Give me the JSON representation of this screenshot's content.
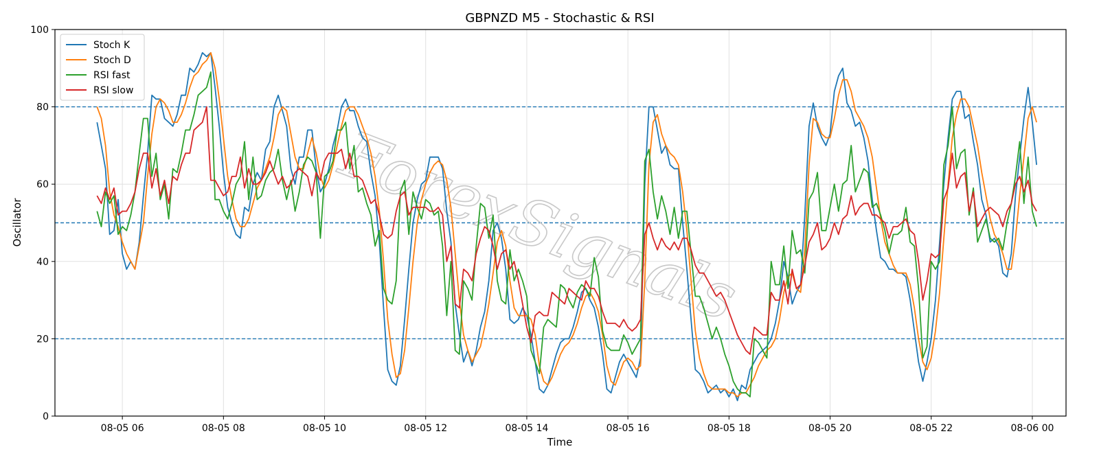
{
  "chart_data": {
    "type": "line",
    "title": "GBPNZD M5 - Stochastic & RSI",
    "xlabel": "Time",
    "ylabel": "Oscillator",
    "ylim": [
      0,
      100
    ],
    "xlim": [
      "08-05 04:40",
      "08-06 00:40"
    ],
    "yticks": [
      0,
      20,
      40,
      60,
      80,
      100
    ],
    "xticks": [
      "08-05 06",
      "08-05 08",
      "08-05 10",
      "08-05 12",
      "08-05 14",
      "08-05 16",
      "08-05 18",
      "08-05 20",
      "08-05 22",
      "08-06 00"
    ],
    "reference_lines": [
      20,
      50,
      80
    ],
    "grid": true,
    "legend_position": "top-left",
    "watermark": "ForexSignals",
    "colors": {
      "stoch_k": "#1f77b4",
      "stoch_d": "#ff7f0e",
      "rsi_fast": "#2ca02c",
      "rsi_slow": "#d62728",
      "reference": "#1f77b4"
    },
    "x_start": "08-05 05:30",
    "x_step_minutes": 5,
    "series": [
      {
        "name": "Stoch K",
        "color": "#1f77b4",
        "values": [
          76,
          70,
          64,
          47,
          48,
          56,
          42,
          38,
          40,
          38,
          45,
          57,
          68,
          83,
          82,
          82,
          77,
          76,
          75,
          78,
          83,
          83,
          90,
          89,
          91,
          94,
          93,
          94,
          85,
          75,
          63,
          54,
          50,
          47,
          46,
          54,
          53,
          60,
          63,
          61,
          69,
          71,
          80,
          83,
          79,
          75,
          64,
          60,
          67,
          67,
          74,
          74,
          64,
          58,
          60,
          64,
          70,
          74,
          80,
          82,
          79,
          79,
          75,
          72,
          71,
          63,
          57,
          45,
          28,
          12,
          9,
          8,
          13,
          25,
          38,
          50,
          56,
          60,
          61,
          67,
          67,
          67,
          64,
          53,
          45,
          29,
          21,
          14,
          17,
          13,
          17,
          23,
          27,
          35,
          48,
          50,
          46,
          38,
          25,
          24,
          25,
          28,
          26,
          21,
          14,
          7,
          6,
          8,
          12,
          16,
          19,
          20,
          20,
          23,
          27,
          32,
          33,
          30,
          28,
          23,
          16,
          7,
          6,
          10,
          14,
          16,
          14,
          12,
          10,
          15,
          60,
          80,
          80,
          74,
          68,
          70,
          65,
          64,
          64,
          50,
          38,
          25,
          12,
          11,
          9,
          6,
          7,
          8,
          6,
          7,
          5,
          7,
          4,
          8,
          7,
          12,
          14,
          16,
          17,
          18,
          20,
          24,
          30,
          40,
          36,
          29,
          32,
          34,
          52,
          75,
          81,
          75,
          72,
          70,
          73,
          84,
          88,
          90,
          81,
          79,
          75,
          76,
          72,
          66,
          56,
          48,
          41,
          40,
          38,
          38,
          37,
          37,
          36,
          30,
          22,
          14,
          9,
          14,
          20,
          30,
          45,
          60,
          72,
          82,
          84,
          84,
          77,
          78,
          71,
          65,
          56,
          52,
          45,
          46,
          44,
          37,
          36,
          42,
          57,
          67,
          77,
          85,
          76,
          65
        ]
      },
      {
        "name": "Stoch D",
        "color": "#ff7f0e",
        "values": [
          80,
          77,
          70,
          58,
          52,
          49,
          45,
          42,
          40,
          38,
          44,
          50,
          62,
          73,
          80,
          82,
          81,
          79,
          76,
          76,
          78,
          81,
          85,
          88,
          89,
          91,
          92,
          94,
          90,
          82,
          72,
          62,
          56,
          51,
          49,
          49,
          51,
          55,
          59,
          61,
          64,
          67,
          72,
          78,
          80,
          79,
          73,
          67,
          64,
          64,
          68,
          72,
          68,
          62,
          59,
          61,
          65,
          70,
          75,
          79,
          80,
          80,
          78,
          75,
          72,
          68,
          62,
          53,
          40,
          25,
          16,
          10,
          11,
          17,
          28,
          40,
          50,
          56,
          60,
          63,
          65,
          66,
          65,
          61,
          54,
          42,
          30,
          21,
          17,
          14,
          16,
          18,
          23,
          29,
          37,
          45,
          48,
          44,
          35,
          28,
          26,
          26,
          26,
          25,
          21,
          13,
          9,
          8,
          10,
          13,
          16,
          18,
          19,
          21,
          24,
          28,
          31,
          32,
          30,
          27,
          21,
          13,
          9,
          8,
          11,
          14,
          15,
          14,
          12,
          13,
          35,
          65,
          76,
          78,
          73,
          70,
          68,
          67,
          65,
          58,
          48,
          35,
          22,
          15,
          11,
          8,
          7,
          7,
          7,
          7,
          6,
          6,
          5,
          6,
          6,
          8,
          10,
          13,
          15,
          17,
          18,
          20,
          25,
          32,
          36,
          37,
          33,
          32,
          43,
          65,
          77,
          76,
          73,
          72,
          72,
          77,
          83,
          87,
          87,
          84,
          79,
          77,
          75,
          72,
          67,
          59,
          51,
          45,
          42,
          39,
          37,
          37,
          37,
          34,
          28,
          20,
          14,
          12,
          15,
          22,
          32,
          46,
          60,
          72,
          78,
          82,
          82,
          80,
          75,
          70,
          63,
          57,
          51,
          47,
          45,
          42,
          38,
          38,
          46,
          57,
          67,
          77,
          80,
          76
        ]
      },
      {
        "name": "RSI fast",
        "color": "#2ca02c",
        "values": [
          53,
          49,
          58,
          55,
          57,
          47,
          49,
          48,
          52,
          58,
          68,
          77,
          77,
          62,
          68,
          56,
          60,
          51,
          64,
          63,
          68,
          74,
          74,
          78,
          83,
          84,
          85,
          89,
          56,
          56,
          53,
          51,
          55,
          60,
          62,
          71,
          56,
          67,
          56,
          57,
          61,
          63,
          64,
          69,
          61,
          56,
          61,
          53,
          58,
          65,
          67,
          66,
          63,
          46,
          62,
          63,
          66,
          74,
          74,
          76,
          64,
          70,
          58,
          59,
          55,
          52,
          44,
          48,
          33,
          30,
          29,
          35,
          58,
          61,
          47,
          58,
          54,
          51,
          56,
          55,
          52,
          53,
          44,
          26,
          40,
          17,
          16,
          35,
          33,
          30,
          44,
          55,
          54,
          46,
          52,
          35,
          30,
          29,
          43,
          35,
          38,
          35,
          31,
          17,
          14,
          11,
          23,
          25,
          24,
          23,
          34,
          33,
          30,
          28,
          32,
          34,
          33,
          31,
          41,
          36,
          22,
          18,
          17,
          17,
          17,
          21,
          19,
          16,
          18,
          20,
          66,
          69,
          58,
          51,
          57,
          53,
          47,
          54,
          46,
          53,
          53,
          42,
          31,
          31,
          28,
          24,
          20,
          23,
          20,
          16,
          13,
          9,
          7,
          6,
          6,
          5,
          20,
          19,
          17,
          15,
          40,
          34,
          34,
          44,
          33,
          48,
          42,
          43,
          37,
          56,
          58,
          63,
          48,
          48,
          54,
          60,
          53,
          60,
          61,
          70,
          58,
          61,
          64,
          63,
          54,
          55,
          52,
          48,
          42,
          47,
          47,
          48,
          54,
          45,
          44,
          33,
          15,
          18,
          40,
          38,
          40,
          65,
          70,
          80,
          64,
          68,
          69,
          52,
          59,
          45,
          48,
          51,
          46,
          45,
          46,
          43,
          50,
          55,
          62,
          71,
          55,
          67,
          53,
          49
        ]
      },
      {
        "name": "RSI slow",
        "color": "#d62728",
        "values": [
          57,
          55,
          59,
          56,
          59,
          52,
          53,
          53,
          55,
          58,
          64,
          68,
          68,
          59,
          64,
          57,
          61,
          55,
          62,
          61,
          65,
          68,
          68,
          74,
          75,
          76,
          80,
          61,
          61,
          59,
          57,
          58,
          62,
          62,
          67,
          59,
          64,
          60,
          60,
          61,
          63,
          66,
          63,
          60,
          62,
          59,
          60,
          63,
          64,
          63,
          62,
          57,
          63,
          61,
          66,
          68,
          68,
          68,
          69,
          64,
          68,
          62,
          62,
          61,
          58,
          55,
          56,
          52,
          47,
          46,
          47,
          53,
          57,
          58,
          52,
          54,
          54,
          54,
          54,
          53,
          53,
          54,
          52,
          40,
          44,
          29,
          28,
          38,
          37,
          35,
          42,
          46,
          49,
          48,
          44,
          38,
          42,
          43,
          38,
          40,
          35,
          29,
          23,
          19,
          26,
          27,
          26,
          26,
          32,
          31,
          30,
          29,
          33,
          32,
          31,
          30,
          35,
          33,
          33,
          31,
          27,
          24,
          24,
          24,
          23,
          25,
          23,
          22,
          23,
          25,
          47,
          50,
          46,
          43,
          46,
          44,
          43,
          45,
          43,
          46,
          46,
          43,
          39,
          37,
          37,
          35,
          33,
          31,
          32,
          30,
          27,
          24,
          21,
          19,
          17,
          16,
          23,
          22,
          21,
          21,
          32,
          30,
          30,
          35,
          29,
          38,
          33,
          34,
          39,
          45,
          47,
          50,
          43,
          44,
          46,
          50,
          47,
          51,
          52,
          57,
          52,
          54,
          55,
          55,
          52,
          52,
          51,
          50,
          46,
          49,
          49,
          50,
          51,
          48,
          47,
          40,
          30,
          35,
          42,
          41,
          42,
          56,
          59,
          68,
          59,
          62,
          63,
          53,
          58,
          49,
          51,
          53,
          54,
          53,
          52,
          49,
          53,
          55,
          60,
          62,
          58,
          61,
          55,
          53
        ]
      }
    ]
  }
}
